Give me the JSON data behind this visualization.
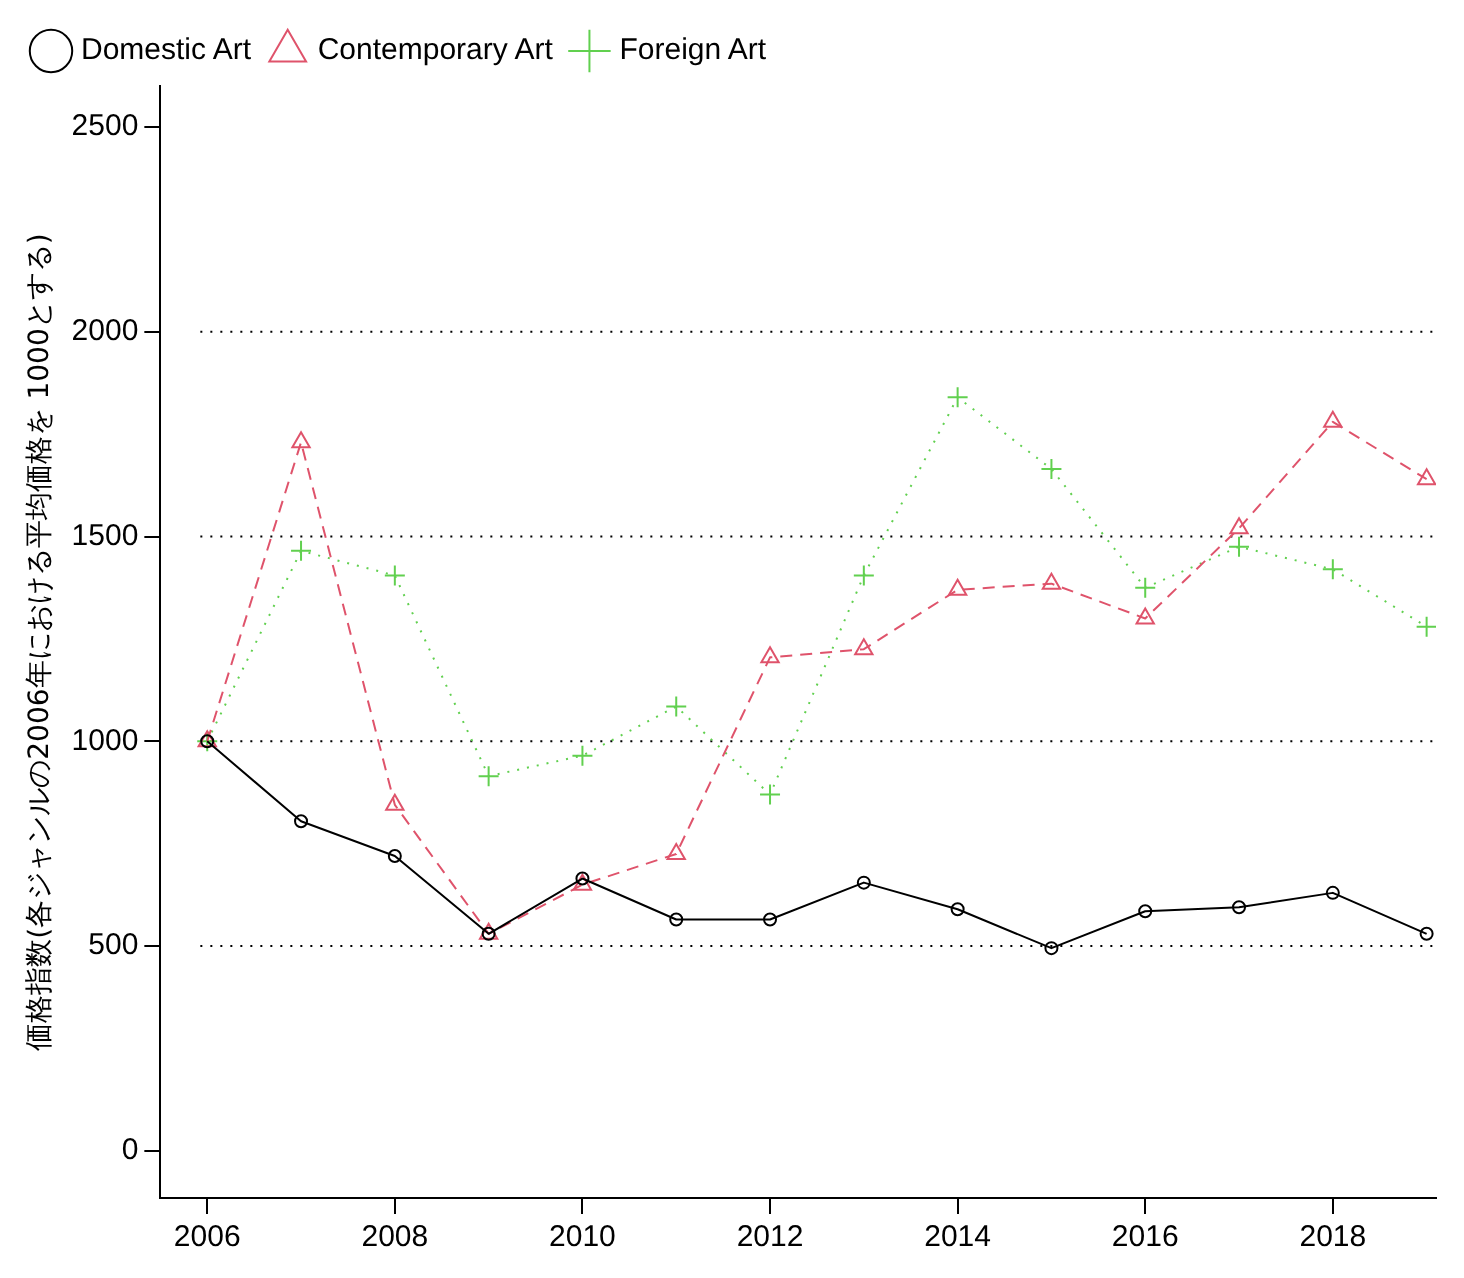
{
  "chart_data": {
    "type": "line",
    "ylabel": "価格指数(各ジャンルの2006年における平均価格を 1000とする)",
    "x": [
      2006,
      2007,
      2008,
      2009,
      2010,
      2011,
      2012,
      2013,
      2014,
      2015,
      2016,
      2017,
      2018,
      2019
    ],
    "series": [
      {
        "name": "Domestic Art",
        "color": "#000000",
        "marker": "circle",
        "line_style": "solid",
        "values": [
          1000,
          805,
          720,
          530,
          665,
          565,
          565,
          655,
          590,
          495,
          585,
          595,
          630,
          530
        ]
      },
      {
        "name": "Contemporary Art",
        "color": "#df536b",
        "marker": "triangle",
        "line_style": "dashed",
        "values": [
          1000,
          1730,
          845,
          530,
          650,
          725,
          1205,
          1225,
          1370,
          1385,
          1300,
          1520,
          1780,
          1640
        ]
      },
      {
        "name": "Foreign Art",
        "color": "#61d04f",
        "marker": "cross",
        "line_style": "dotted",
        "values": [
          1000,
          1465,
          1405,
          915,
          965,
          1085,
          870,
          1405,
          1840,
          1665,
          1375,
          1475,
          1420,
          1280
        ]
      }
    ],
    "xlim": [
      2005.5,
      2019.1
    ],
    "xticks": [
      2006,
      2008,
      2010,
      2012,
      2014,
      2016,
      2018
    ],
    "ylim": [
      -115,
      2600
    ],
    "yticks": [
      0,
      500,
      1000,
      1500,
      2000,
      2500
    ],
    "ref_lines": [
      {
        "axis": "y",
        "value": 500,
        "color": "#000000",
        "line_style": "dotted"
      },
      {
        "axis": "y",
        "value": 1000,
        "color": "#000000",
        "line_style": "dotted"
      },
      {
        "axis": "y",
        "value": 1500,
        "color": "#000000",
        "line_style": "dotted"
      },
      {
        "axis": "y",
        "value": 2000,
        "color": "#000000",
        "line_style": "dotted"
      }
    ],
    "grid": false,
    "legend": "top left"
  }
}
